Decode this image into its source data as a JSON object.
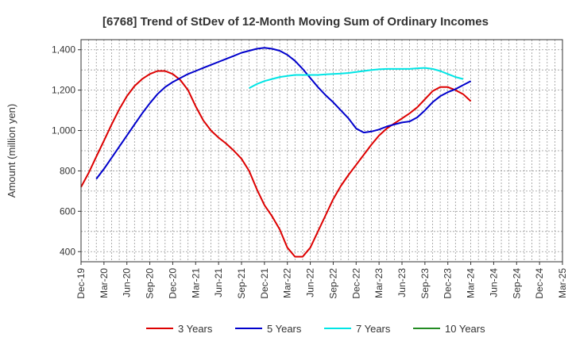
{
  "chart_data": {
    "type": "line",
    "title": "[6768]  Trend of StDev of 12-Month Moving Sum of Ordinary Incomes",
    "xlabel": "",
    "ylabel": "Amount (million yen)",
    "ylim": [
      350,
      1450
    ],
    "yticks": [
      400,
      600,
      800,
      1000,
      1200,
      1400
    ],
    "ytick_labels": [
      "400",
      "600",
      "800",
      "1,000",
      "1,200",
      "1,400"
    ],
    "xticks": [
      "Dec-19",
      "Mar-20",
      "Jun-20",
      "Sep-20",
      "Dec-20",
      "Mar-21",
      "Jun-21",
      "Sep-21",
      "Dec-21",
      "Mar-22",
      "Jun-22",
      "Sep-22",
      "Dec-22",
      "Mar-23",
      "Jun-23",
      "Sep-23",
      "Dec-23",
      "Mar-24",
      "Jun-24",
      "Sep-24",
      "Dec-24",
      "Mar-25"
    ],
    "grid": true,
    "legend_position": "bottom",
    "series": [
      {
        "name": "3 Years",
        "color": "#dd0000",
        "start_index": 0,
        "values": [
          720,
          790,
          870,
          950,
          1030,
          1105,
          1170,
          1220,
          1255,
          1280,
          1295,
          1295,
          1280,
          1250,
          1200,
          1120,
          1050,
          1000,
          965,
          935,
          900,
          860,
          800,
          710,
          630,
          575,
          510,
          420,
          375,
          375,
          420,
          500,
          580,
          660,
          725,
          780,
          830,
          880,
          930,
          975,
          1010,
          1035,
          1060,
          1085,
          1115,
          1155,
          1195,
          1215,
          1215,
          1200,
          1180,
          1145
        ]
      },
      {
        "name": "5 Years",
        "color": "#0000cc",
        "start_index": 2,
        "values": [
          760,
          810,
          865,
          920,
          975,
          1030,
          1085,
          1135,
          1180,
          1215,
          1240,
          1260,
          1280,
          1295,
          1310,
          1325,
          1340,
          1355,
          1370,
          1385,
          1395,
          1405,
          1410,
          1405,
          1395,
          1375,
          1345,
          1305,
          1260,
          1215,
          1175,
          1140,
          1100,
          1060,
          1010,
          990,
          995,
          1005,
          1020,
          1030,
          1040,
          1045,
          1065,
          1100,
          1140,
          1170,
          1190,
          1205,
          1225,
          1245
        ]
      },
      {
        "name": "7 Years",
        "color": "#00e5e5",
        "start_index": 22,
        "values": [
          1210,
          1230,
          1245,
          1255,
          1265,
          1270,
          1275,
          1275,
          1275,
          1275,
          1278,
          1280,
          1282,
          1285,
          1290,
          1295,
          1300,
          1303,
          1305,
          1305,
          1305,
          1305,
          1308,
          1310,
          1305,
          1295,
          1280,
          1265,
          1255
        ]
      },
      {
        "name": "10 Years",
        "color": "#228b22",
        "start_index": 0,
        "values": []
      }
    ]
  }
}
